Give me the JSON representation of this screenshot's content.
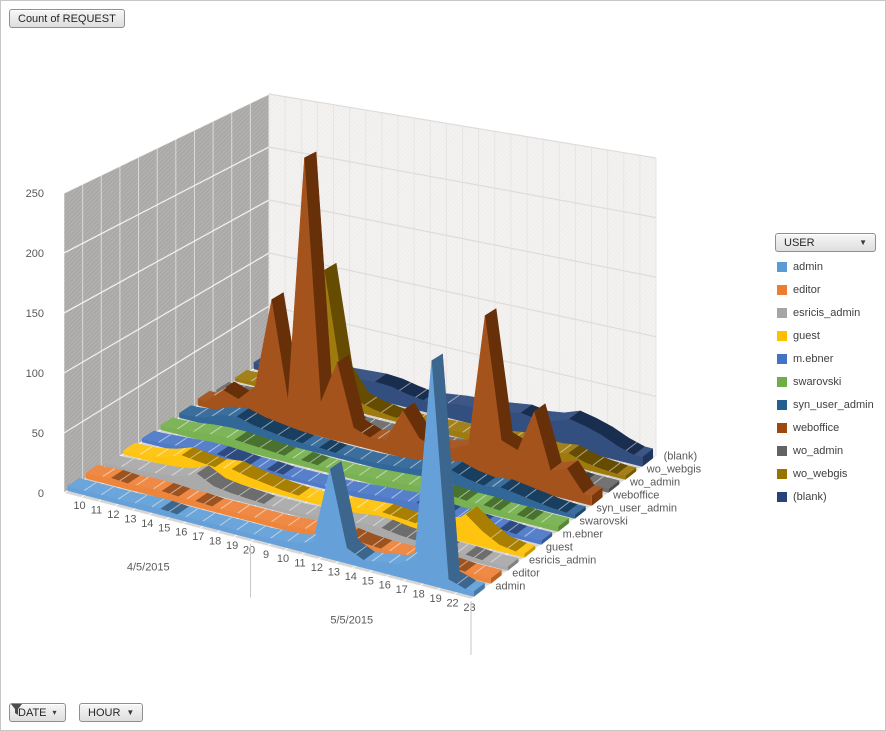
{
  "pivot": {
    "value_field_button": "Count of REQUEST",
    "legend_field_button": "USER",
    "axis_field_buttons": [
      {
        "label": "DATE",
        "filtered": true
      },
      {
        "label": "HOUR",
        "filtered": false
      }
    ]
  },
  "chart_data": {
    "type": "area",
    "projection": "3d",
    "title": "Count of REQUEST",
    "value_axis": {
      "min": 0,
      "max": 250,
      "step": 50
    },
    "category_axis": {
      "groups": [
        {
          "date": "4/5/2015",
          "hours": [
            "10",
            "11",
            "12",
            "13",
            "14",
            "15",
            "16",
            "17",
            "18",
            "19",
            "20"
          ]
        },
        {
          "date": "5/5/2015",
          "hours": [
            "9",
            "10",
            "11",
            "12",
            "13",
            "14",
            "15",
            "16",
            "17",
            "18",
            "19",
            "22",
            "23"
          ]
        }
      ]
    },
    "series_axis_title": "USER",
    "series": [
      {
        "name": "admin",
        "color": "#5B9BD5",
        "values": [
          4,
          4,
          4,
          4,
          5,
          5,
          4,
          4,
          4,
          4,
          4,
          4,
          5,
          6,
          10,
          70,
          12,
          6,
          8,
          10,
          18,
          170,
          8,
          4
        ]
      },
      {
        "name": "editor",
        "color": "#ED7D31",
        "values": [
          5,
          6,
          5,
          6,
          6,
          5,
          5,
          4,
          4,
          4,
          4,
          4,
          5,
          6,
          8,
          8,
          6,
          5,
          5,
          6,
          5,
          5,
          4,
          4
        ]
      },
      {
        "name": "esricis_admin",
        "color": "#A5A5A5",
        "values": [
          3,
          4,
          5,
          6,
          8,
          14,
          7,
          5,
          4,
          3,
          3,
          3,
          4,
          5,
          6,
          8,
          8,
          6,
          5,
          5,
          4,
          4,
          3,
          3
        ]
      },
      {
        "name": "guest",
        "color": "#FFC000",
        "values": [
          3,
          4,
          7,
          12,
          10,
          9,
          11,
          8,
          6,
          4,
          3,
          3,
          4,
          5,
          6,
          7,
          6,
          5,
          7,
          10,
          22,
          12,
          5,
          3
        ]
      },
      {
        "name": "m.ebner",
        "color": "#4472C4",
        "values": [
          3,
          4,
          5,
          6,
          6,
          5,
          4,
          4,
          3,
          3,
          3,
          3,
          4,
          5,
          6,
          7,
          8,
          6,
          5,
          5,
          4,
          4,
          3,
          3
        ]
      },
      {
        "name": "swarovski",
        "color": "#70AD47",
        "values": [
          4,
          5,
          7,
          8,
          8,
          7,
          6,
          5,
          5,
          4,
          4,
          4,
          5,
          6,
          7,
          8,
          8,
          7,
          6,
          6,
          5,
          5,
          4,
          4
        ]
      },
      {
        "name": "syn_user_admin",
        "color": "#255E91",
        "values": [
          4,
          6,
          12,
          14,
          10,
          8,
          6,
          5,
          5,
          4,
          4,
          4,
          5,
          6,
          8,
          12,
          14,
          10,
          8,
          10,
          8,
          6,
          4,
          3
        ]
      },
      {
        "name": "weboffice",
        "color": "#9E480E",
        "values": [
          6,
          20,
          15,
          30,
          110,
          25,
          240,
          30,
          68,
          15,
          10,
          12,
          40,
          20,
          15,
          18,
          25,
          135,
          35,
          30,
          65,
          20,
          25,
          8
        ]
      },
      {
        "name": "wo_admin",
        "color": "#636363",
        "values": [
          3,
          4,
          4,
          5,
          5,
          4,
          4,
          4,
          3,
          3,
          3,
          3,
          4,
          4,
          5,
          5,
          5,
          4,
          4,
          4,
          4,
          4,
          3,
          3
        ]
      },
      {
        "name": "wo_webgis",
        "color": "#997300",
        "values": [
          3,
          5,
          8,
          10,
          35,
          120,
          30,
          10,
          6,
          4,
          3,
          3,
          4,
          5,
          6,
          7,
          8,
          10,
          8,
          8,
          10,
          6,
          4,
          3
        ]
      },
      {
        "name": "(blank)",
        "color": "#264478",
        "values": [
          6,
          8,
          10,
          12,
          15,
          14,
          15,
          16,
          15,
          12,
          10,
          12,
          14,
          15,
          16,
          18,
          20,
          18,
          20,
          25,
          22,
          18,
          12,
          8
        ]
      }
    ]
  }
}
